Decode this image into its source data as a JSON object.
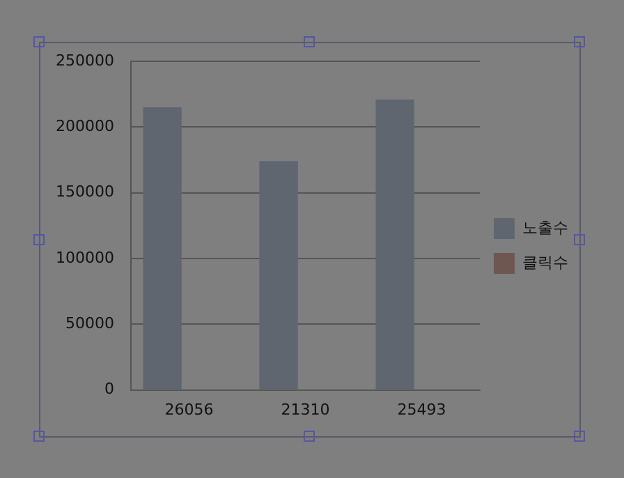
{
  "chart_data": {
    "type": "bar",
    "categories": [
      "26056",
      "21310",
      "25493"
    ],
    "series": [
      {
        "name": "노출수",
        "color": "#5f6670",
        "values": [
          215000,
          174000,
          221000
        ]
      },
      {
        "name": "클릭수",
        "color": "#6e5750",
        "values": [
          0,
          0,
          0
        ]
      }
    ],
    "ylim": [
      0,
      250000
    ],
    "yticks": [
      0,
      50000,
      100000,
      150000,
      200000,
      250000
    ],
    "grid": "y",
    "legend": "right"
  }
}
